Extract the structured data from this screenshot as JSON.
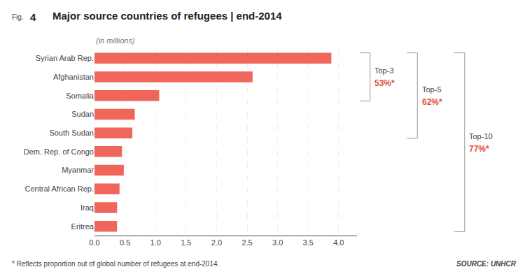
{
  "chart_data": {
    "type": "bar",
    "orientation": "horizontal",
    "title": "Major source countries of refugees | end-2014",
    "subtitle": "(in millions)",
    "fig_label": "Fig.",
    "fig_number": "4",
    "footnote": "* Reflects proportion out of global number of refugees at end-2014.",
    "source": "SOURCE: UNHCR",
    "categories": [
      "Syrian Arab Rep.",
      "Afghanistan",
      "Somalia",
      "Sudan",
      "South Sudan",
      "Dem. Rep. of Congo",
      "Myanmar",
      "Central African Rep.",
      "Iraq",
      "Eritrea"
    ],
    "values": [
      3.88,
      2.59,
      1.06,
      0.66,
      0.62,
      0.45,
      0.48,
      0.41,
      0.37,
      0.37
    ],
    "color": "#f0665a",
    "xlim": [
      0,
      4.3
    ],
    "xticks": [
      {
        "value": 0.0,
        "label": "0.0"
      },
      0.5,
      {
        "value": 1.0,
        "label": "1.0"
      },
      1.5,
      {
        "value": 2.0,
        "label": "2.0"
      },
      2.5,
      {
        "value": 3.0,
        "label": "3.0"
      },
      3.5,
      {
        "value": 4.0,
        "label": "4.0"
      }
    ],
    "grid": true,
    "brackets": [
      {
        "text": "Top-3",
        "label": "53%*",
        "from": "Syrian Arab Rep.",
        "to": "Somalia",
        "color": "#e05040"
      },
      {
        "text": "Top-5",
        "label": "62%*",
        "from": "Syrian Arab Rep.",
        "to": "South Sudan",
        "color": "#e05040"
      },
      {
        "text": "Top-10",
        "label": "77%*",
        "from": "Syrian Arab Rep.",
        "to": "Eritrea",
        "color": "#e05040"
      }
    ]
  }
}
